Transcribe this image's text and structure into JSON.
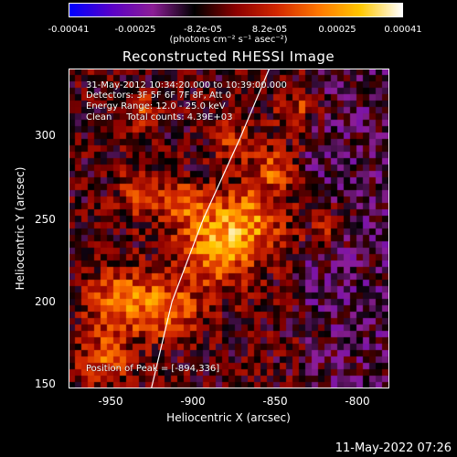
{
  "colorbar": {
    "ticks": [
      "-0.00041",
      "-0.00025",
      "-8.2e-05",
      "8.2e-05",
      "0.00025",
      "0.00041"
    ],
    "units": "(photons cm⁻² s⁻¹ asec⁻²)",
    "colors": [
      "#0000ff",
      "#5a00c8",
      "#8c1e96",
      "#000000",
      "#8c0000",
      "#d22800",
      "#ff7800",
      "#ffc800",
      "#ffffff"
    ]
  },
  "chart_data": {
    "type": "heatmap",
    "title": "Reconstructed RHESSI Image",
    "xlabel": "Heliocentric X (arcsec)",
    "ylabel": "Heliocentric Y (arcsec)",
    "xlim": [
      -975,
      -820
    ],
    "ylim": [
      147,
      342
    ],
    "xticks": [
      "-950",
      "-900",
      "-850",
      "-800"
    ],
    "yticks": [
      "150",
      "200",
      "250",
      "300"
    ],
    "limb_curve": [
      [
        -935,
        147
      ],
      [
        -925,
        200
      ],
      [
        -910,
        250
      ],
      [
        -892,
        300
      ],
      [
        -878,
        342
      ]
    ],
    "colorscale_range": [
      -0.00041,
      0.00041
    ]
  },
  "annotations": {
    "time": "31-May-2012 10:34:20.000 to 10:39:00.000",
    "detectors": "Detectors: 3F 5F 6F 7F 8F, Att 0",
    "energy": "Energy Range: 12.0 - 25.0 keV",
    "clean": "Clean     Total counts: 4.39E+03",
    "peak": "Position of Peak = [-894,336]"
  },
  "footer": {
    "date": "11-May-2022 07:26"
  }
}
